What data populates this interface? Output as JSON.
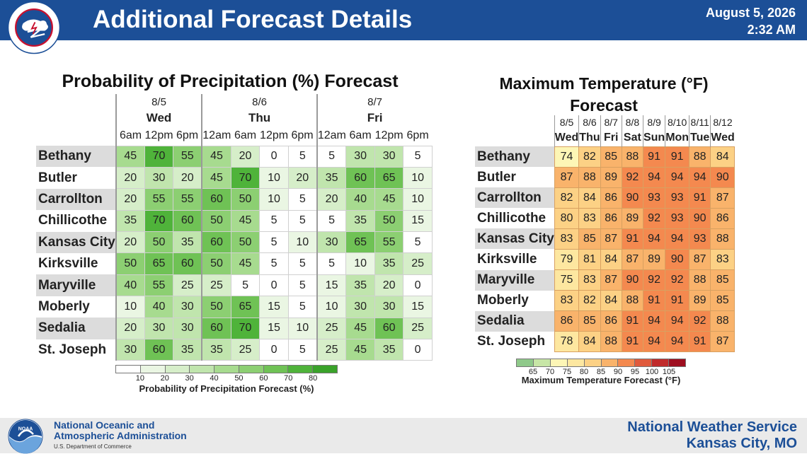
{
  "header": {
    "title": "Additional Forecast Details",
    "date": "August 5, 2026",
    "time": "2:32 AM",
    "logo_text": "NATIONAL WEATHER SERVICE"
  },
  "precip": {
    "title": "Probability of Precipitation (%) Forecast",
    "days": [
      {
        "date": "8/5",
        "day": "Wed"
      },
      {
        "date": "8/6",
        "day": "Thu"
      },
      {
        "date": "8/7",
        "day": "Fri"
      }
    ],
    "times": [
      "6am",
      "12pm",
      "6pm",
      "12am",
      "6am",
      "12pm",
      "6pm",
      "12am",
      "6am",
      "12pm",
      "6pm"
    ],
    "rows": [
      {
        "name": "Bethany",
        "values": [
          45,
          70,
          55,
          45,
          20,
          0,
          5,
          5,
          30,
          30,
          5
        ]
      },
      {
        "name": "Butler",
        "values": [
          20,
          30,
          20,
          45,
          70,
          10,
          20,
          35,
          60,
          65,
          10
        ]
      },
      {
        "name": "Carrollton",
        "values": [
          20,
          55,
          55,
          60,
          50,
          10,
          5,
          20,
          40,
          45,
          10
        ]
      },
      {
        "name": "Chillicothe",
        "values": [
          35,
          70,
          60,
          50,
          45,
          5,
          5,
          5,
          35,
          50,
          15
        ]
      },
      {
        "name": "Kansas City",
        "values": [
          20,
          50,
          35,
          60,
          50,
          5,
          10,
          30,
          65,
          55,
          5
        ]
      },
      {
        "name": "Kirksville",
        "values": [
          50,
          65,
          60,
          50,
          45,
          5,
          5,
          5,
          10,
          35,
          25
        ]
      },
      {
        "name": "Maryville",
        "values": [
          40,
          55,
          25,
          25,
          5,
          0,
          5,
          15,
          35,
          20,
          0
        ]
      },
      {
        "name": "Moberly",
        "values": [
          10,
          40,
          30,
          50,
          65,
          15,
          5,
          10,
          30,
          30,
          15
        ]
      },
      {
        "name": "Sedalia",
        "values": [
          20,
          30,
          30,
          60,
          70,
          15,
          10,
          25,
          45,
          60,
          25
        ]
      },
      {
        "name": "St. Joseph",
        "values": [
          30,
          60,
          35,
          35,
          25,
          0,
          5,
          25,
          45,
          35,
          0
        ]
      }
    ],
    "legend": {
      "ticks": [
        "10",
        "20",
        "30",
        "40",
        "50",
        "60",
        "70",
        "80"
      ],
      "title": "Probability of Precipitation Forecast (%)",
      "colors": [
        "#ffffff",
        "#eaf6e3",
        "#d6eec9",
        "#c0e5ad",
        "#a7db8f",
        "#8ccf72",
        "#6fc255",
        "#4fb33a",
        "#3aa22a"
      ]
    }
  },
  "temp": {
    "title_line1": "Maximum Temperature (°F)",
    "title_line2": "Forecast",
    "days": [
      {
        "date": "8/5",
        "day": "Wed"
      },
      {
        "date": "8/6",
        "day": "Thu"
      },
      {
        "date": "8/7",
        "day": "Fri"
      },
      {
        "date": "8/8",
        "day": "Sat"
      },
      {
        "date": "8/9",
        "day": "Sun"
      },
      {
        "date": "8/10",
        "day": "Mon"
      },
      {
        "date": "8/11",
        "day": "Tue"
      },
      {
        "date": "8/12",
        "day": "Wed"
      }
    ],
    "rows": [
      {
        "name": "Bethany",
        "values": [
          74,
          82,
          85,
          88,
          91,
          91,
          88,
          84
        ]
      },
      {
        "name": "Butler",
        "values": [
          87,
          88,
          89,
          92,
          94,
          94,
          94,
          90
        ]
      },
      {
        "name": "Carrollton",
        "values": [
          82,
          84,
          86,
          90,
          93,
          93,
          91,
          87
        ]
      },
      {
        "name": "Chillicothe",
        "values": [
          80,
          83,
          86,
          89,
          92,
          93,
          90,
          86
        ]
      },
      {
        "name": "Kansas City",
        "values": [
          83,
          85,
          87,
          91,
          94,
          94,
          93,
          88
        ]
      },
      {
        "name": "Kirksville",
        "values": [
          79,
          81,
          84,
          87,
          89,
          90,
          87,
          83
        ]
      },
      {
        "name": "Maryville",
        "values": [
          75,
          83,
          87,
          90,
          92,
          92,
          88,
          85
        ]
      },
      {
        "name": "Moberly",
        "values": [
          83,
          82,
          84,
          88,
          91,
          91,
          89,
          85
        ]
      },
      {
        "name": "Sedalia",
        "values": [
          86,
          85,
          86,
          91,
          94,
          94,
          92,
          88
        ]
      },
      {
        "name": "St. Joseph",
        "values": [
          78,
          84,
          88,
          91,
          94,
          94,
          91,
          87
        ]
      }
    ],
    "legend": {
      "ticks": [
        "65",
        "70",
        "75",
        "80",
        "85",
        "90",
        "95",
        "100",
        "105"
      ],
      "title": "Maximum Temperature Forecast (°F)",
      "colors": [
        "#8fc98a",
        "#c7e6a6",
        "#fdf6b6",
        "#fde7a0",
        "#fcd185",
        "#f9b36b",
        "#f4894f",
        "#e05a3c",
        "#c02a2a",
        "#9e0e1f"
      ]
    }
  },
  "footer": {
    "noaa_line1": "National Oceanic and",
    "noaa_line2": "Atmospheric Administration",
    "department": "U.S. Department of Commerce",
    "nws_line1": "National Weather Service",
    "nws_line2": "Kansas City, MO",
    "noaa_logo_text": "NOAA"
  }
}
